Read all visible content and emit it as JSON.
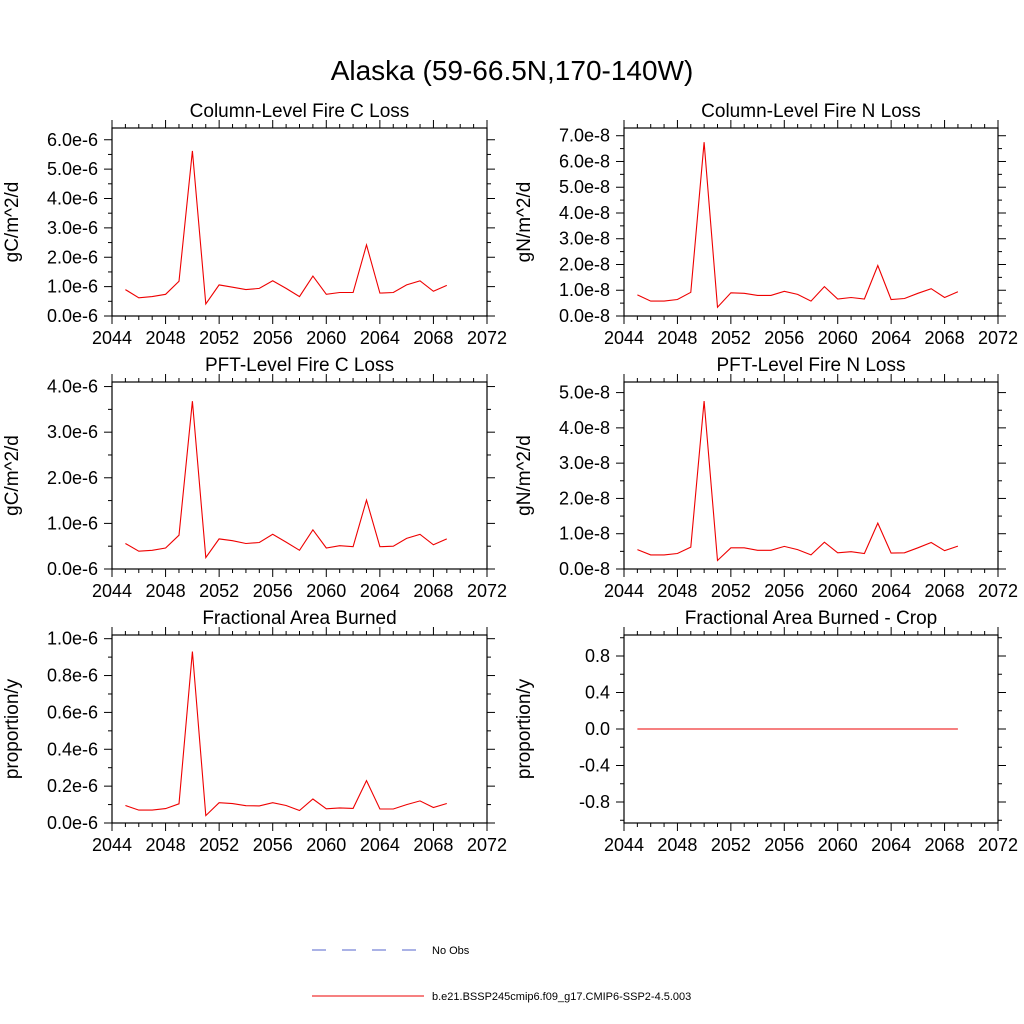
{
  "title": "Alaska (59-66.5N,170-140W)",
  "legend": [
    {
      "label": "No Obs",
      "color": "#5566cc",
      "dash": true
    },
    {
      "label": "b.e21.BSSP245cmip6.f09_g17.CMIP6-SSP2-4.5.003",
      "color": "#ee0000",
      "dash": false
    }
  ],
  "chart_data": [
    {
      "type": "line",
      "title": "Column-Level Fire C Loss",
      "ylabel": "gC/m^2/d",
      "xlim": [
        2044,
        2072
      ],
      "ylim": [
        0,
        6.4e-06
      ],
      "xticks": [
        2044,
        2048,
        2052,
        2056,
        2060,
        2064,
        2068,
        2072
      ],
      "yticks": [
        0,
        1e-06,
        2e-06,
        3e-06,
        4e-06,
        5e-06,
        6e-06
      ],
      "ytick_labels": [
        "0.0e-6",
        "1.0e-6",
        "2.0e-6",
        "3.0e-6",
        "4.0e-6",
        "5.0e-6",
        "6.0e-6"
      ],
      "series": [
        {
          "color": "#ee0000",
          "x": [
            2045,
            2046,
            2047,
            2048,
            2049,
            2050,
            2051,
            2052,
            2053,
            2054,
            2055,
            2056,
            2057,
            2058,
            2059,
            2060,
            2061,
            2062,
            2063,
            2064,
            2065,
            2066,
            2067,
            2068,
            2069
          ],
          "values": [
            9e-07,
            6.2e-07,
            6.6e-07,
            7.4e-07,
            1.18e-06,
            5.62e-06,
            4.1e-07,
            1.06e-06,
            9.8e-07,
            9e-07,
            9.4e-07,
            1.2e-06,
            9.4e-07,
            6.6e-07,
            1.36e-06,
            7.4e-07,
            8e-07,
            8e-07,
            2.42e-06,
            7.8e-07,
            8e-07,
            1.06e-06,
            1.2e-06,
            8.4e-07,
            1.04e-06
          ]
        }
      ]
    },
    {
      "type": "line",
      "title": "Column-Level Fire N Loss",
      "ylabel": "gN/m^2/d",
      "xlim": [
        2044,
        2072
      ],
      "ylim": [
        0,
        7.3e-08
      ],
      "xticks": [
        2044,
        2048,
        2052,
        2056,
        2060,
        2064,
        2068,
        2072
      ],
      "yticks": [
        0,
        1e-08,
        2e-08,
        3e-08,
        4e-08,
        5e-08,
        6e-08,
        7e-08
      ],
      "ytick_labels": [
        "0.0e-8",
        "1.0e-8",
        "2.0e-8",
        "3.0e-8",
        "4.0e-8",
        "5.0e-8",
        "6.0e-8",
        "7.0e-8"
      ],
      "series": [
        {
          "color": "#ee0000",
          "x": [
            2045,
            2046,
            2047,
            2048,
            2049,
            2050,
            2051,
            2052,
            2053,
            2054,
            2055,
            2056,
            2057,
            2058,
            2059,
            2060,
            2061,
            2062,
            2063,
            2064,
            2065,
            2066,
            2067,
            2068,
            2069
          ],
          "values": [
            8.2e-09,
            5.8e-09,
            5.8e-09,
            6.4e-09,
            9.2e-09,
            6.75e-08,
            3.4e-09,
            9e-09,
            8.8e-09,
            8e-09,
            8e-09,
            9.6e-09,
            8.4e-09,
            5.8e-09,
            1.14e-08,
            6.6e-09,
            7.2e-09,
            6.6e-09,
            1.96e-08,
            6.4e-09,
            6.8e-09,
            8.8e-09,
            1.06e-08,
            7.2e-09,
            9.4e-09
          ]
        }
      ]
    },
    {
      "type": "line",
      "title": "PFT-Level Fire C Loss",
      "ylabel": "gC/m^2/d",
      "xlim": [
        2044,
        2072
      ],
      "ylim": [
        0,
        4.1e-06
      ],
      "xticks": [
        2044,
        2048,
        2052,
        2056,
        2060,
        2064,
        2068,
        2072
      ],
      "yticks": [
        0,
        1e-06,
        2e-06,
        3e-06,
        4e-06
      ],
      "ytick_labels": [
        "0.0e-6",
        "1.0e-6",
        "2.0e-6",
        "3.0e-6",
        "4.0e-6"
      ],
      "series": [
        {
          "color": "#ee0000",
          "x": [
            2045,
            2046,
            2047,
            2048,
            2049,
            2050,
            2051,
            2052,
            2053,
            2054,
            2055,
            2056,
            2057,
            2058,
            2059,
            2060,
            2061,
            2062,
            2063,
            2064,
            2065,
            2066,
            2067,
            2068,
            2069
          ],
          "values": [
            5.6e-07,
            3.9e-07,
            4.1e-07,
            4.6e-07,
            7.4e-07,
            3.68e-06,
            2.5e-07,
            6.6e-07,
            6.2e-07,
            5.6e-07,
            5.8e-07,
            7.6e-07,
            5.9e-07,
            4.1e-07,
            8.6e-07,
            4.6e-07,
            5.1e-07,
            4.9e-07,
            1.51e-06,
            4.9e-07,
            5e-07,
            6.7e-07,
            7.6e-07,
            5.3e-07,
            6.6e-07
          ]
        }
      ]
    },
    {
      "type": "line",
      "title": "PFT-Level Fire N Loss",
      "ylabel": "gN/m^2/d",
      "xlim": [
        2044,
        2072
      ],
      "ylim": [
        0,
        5.3e-08
      ],
      "xticks": [
        2044,
        2048,
        2052,
        2056,
        2060,
        2064,
        2068,
        2072
      ],
      "yticks": [
        0,
        1e-08,
        2e-08,
        3e-08,
        4e-08,
        5e-08
      ],
      "ytick_labels": [
        "0.0e-8",
        "1.0e-8",
        "2.0e-8",
        "3.0e-8",
        "4.0e-8",
        "5.0e-8"
      ],
      "series": [
        {
          "color": "#ee0000",
          "x": [
            2045,
            2046,
            2047,
            2048,
            2049,
            2050,
            2051,
            2052,
            2053,
            2054,
            2055,
            2056,
            2057,
            2058,
            2059,
            2060,
            2061,
            2062,
            2063,
            2064,
            2065,
            2066,
            2067,
            2068,
            2069
          ],
          "values": [
            5.5e-09,
            4e-09,
            4e-09,
            4.4e-09,
            6.2e-09,
            4.76e-08,
            2.4e-09,
            6e-09,
            6e-09,
            5.3e-09,
            5.3e-09,
            6.4e-09,
            5.5e-09,
            4e-09,
            7.6e-09,
            4.6e-09,
            4.9e-09,
            4.4e-09,
            1.3e-08,
            4.5e-09,
            4.6e-09,
            6e-09,
            7.5e-09,
            5.2e-09,
            6.5e-09
          ]
        }
      ]
    },
    {
      "type": "line",
      "title": "Fractional Area Burned",
      "ylabel": "proportion/y",
      "xlim": [
        2044,
        2072
      ],
      "ylim": [
        0,
        1.02e-06
      ],
      "xticks": [
        2044,
        2048,
        2052,
        2056,
        2060,
        2064,
        2068,
        2072
      ],
      "yticks": [
        0,
        2e-07,
        4e-07,
        6e-07,
        8e-07,
        1e-06
      ],
      "ytick_labels": [
        "0.0e-6",
        "0.2e-6",
        "0.4e-6",
        "0.6e-6",
        "0.8e-6",
        "1.0e-6"
      ],
      "series": [
        {
          "color": "#ee0000",
          "x": [
            2045,
            2046,
            2047,
            2048,
            2049,
            2050,
            2051,
            2052,
            2053,
            2054,
            2055,
            2056,
            2057,
            2058,
            2059,
            2060,
            2061,
            2062,
            2063,
            2064,
            2065,
            2066,
            2067,
            2068,
            2069
          ],
          "values": [
            9.5e-08,
            7e-08,
            7e-08,
            7.8e-08,
            1.04e-07,
            9.3e-07,
            4e-08,
            1.1e-07,
            1.05e-07,
            9.4e-08,
            9.3e-08,
            1.1e-07,
            9.5e-08,
            6.8e-08,
            1.3e-07,
            7.7e-08,
            8.2e-08,
            7.9e-08,
            2.3e-07,
            7.6e-08,
            7.6e-08,
            1e-07,
            1.2e-07,
            8.4e-08,
            1.06e-07
          ]
        }
      ]
    },
    {
      "type": "line",
      "title": "Fractional Area Burned - Crop",
      "ylabel": "proportion/y",
      "xlim": [
        2044,
        2072
      ],
      "ylim": [
        -1.03,
        1.03
      ],
      "xticks": [
        2044,
        2048,
        2052,
        2056,
        2060,
        2064,
        2068,
        2072
      ],
      "yticks": [
        -0.8,
        -0.4,
        0,
        0.4,
        0.8
      ],
      "ytick_labels": [
        "-0.8",
        "-0.4",
        "0.0",
        "0.4",
        "0.8"
      ],
      "series": [
        {
          "color": "#ee0000",
          "x": [
            2045,
            2046,
            2047,
            2048,
            2049,
            2050,
            2051,
            2052,
            2053,
            2054,
            2055,
            2056,
            2057,
            2058,
            2059,
            2060,
            2061,
            2062,
            2063,
            2064,
            2065,
            2066,
            2067,
            2068,
            2069
          ],
          "values": [
            0,
            0,
            0,
            0,
            0,
            0,
            0,
            0,
            0,
            0,
            0,
            0,
            0,
            0,
            0,
            0,
            0,
            0,
            0,
            0,
            0,
            0,
            0,
            0,
            0
          ]
        }
      ]
    }
  ]
}
